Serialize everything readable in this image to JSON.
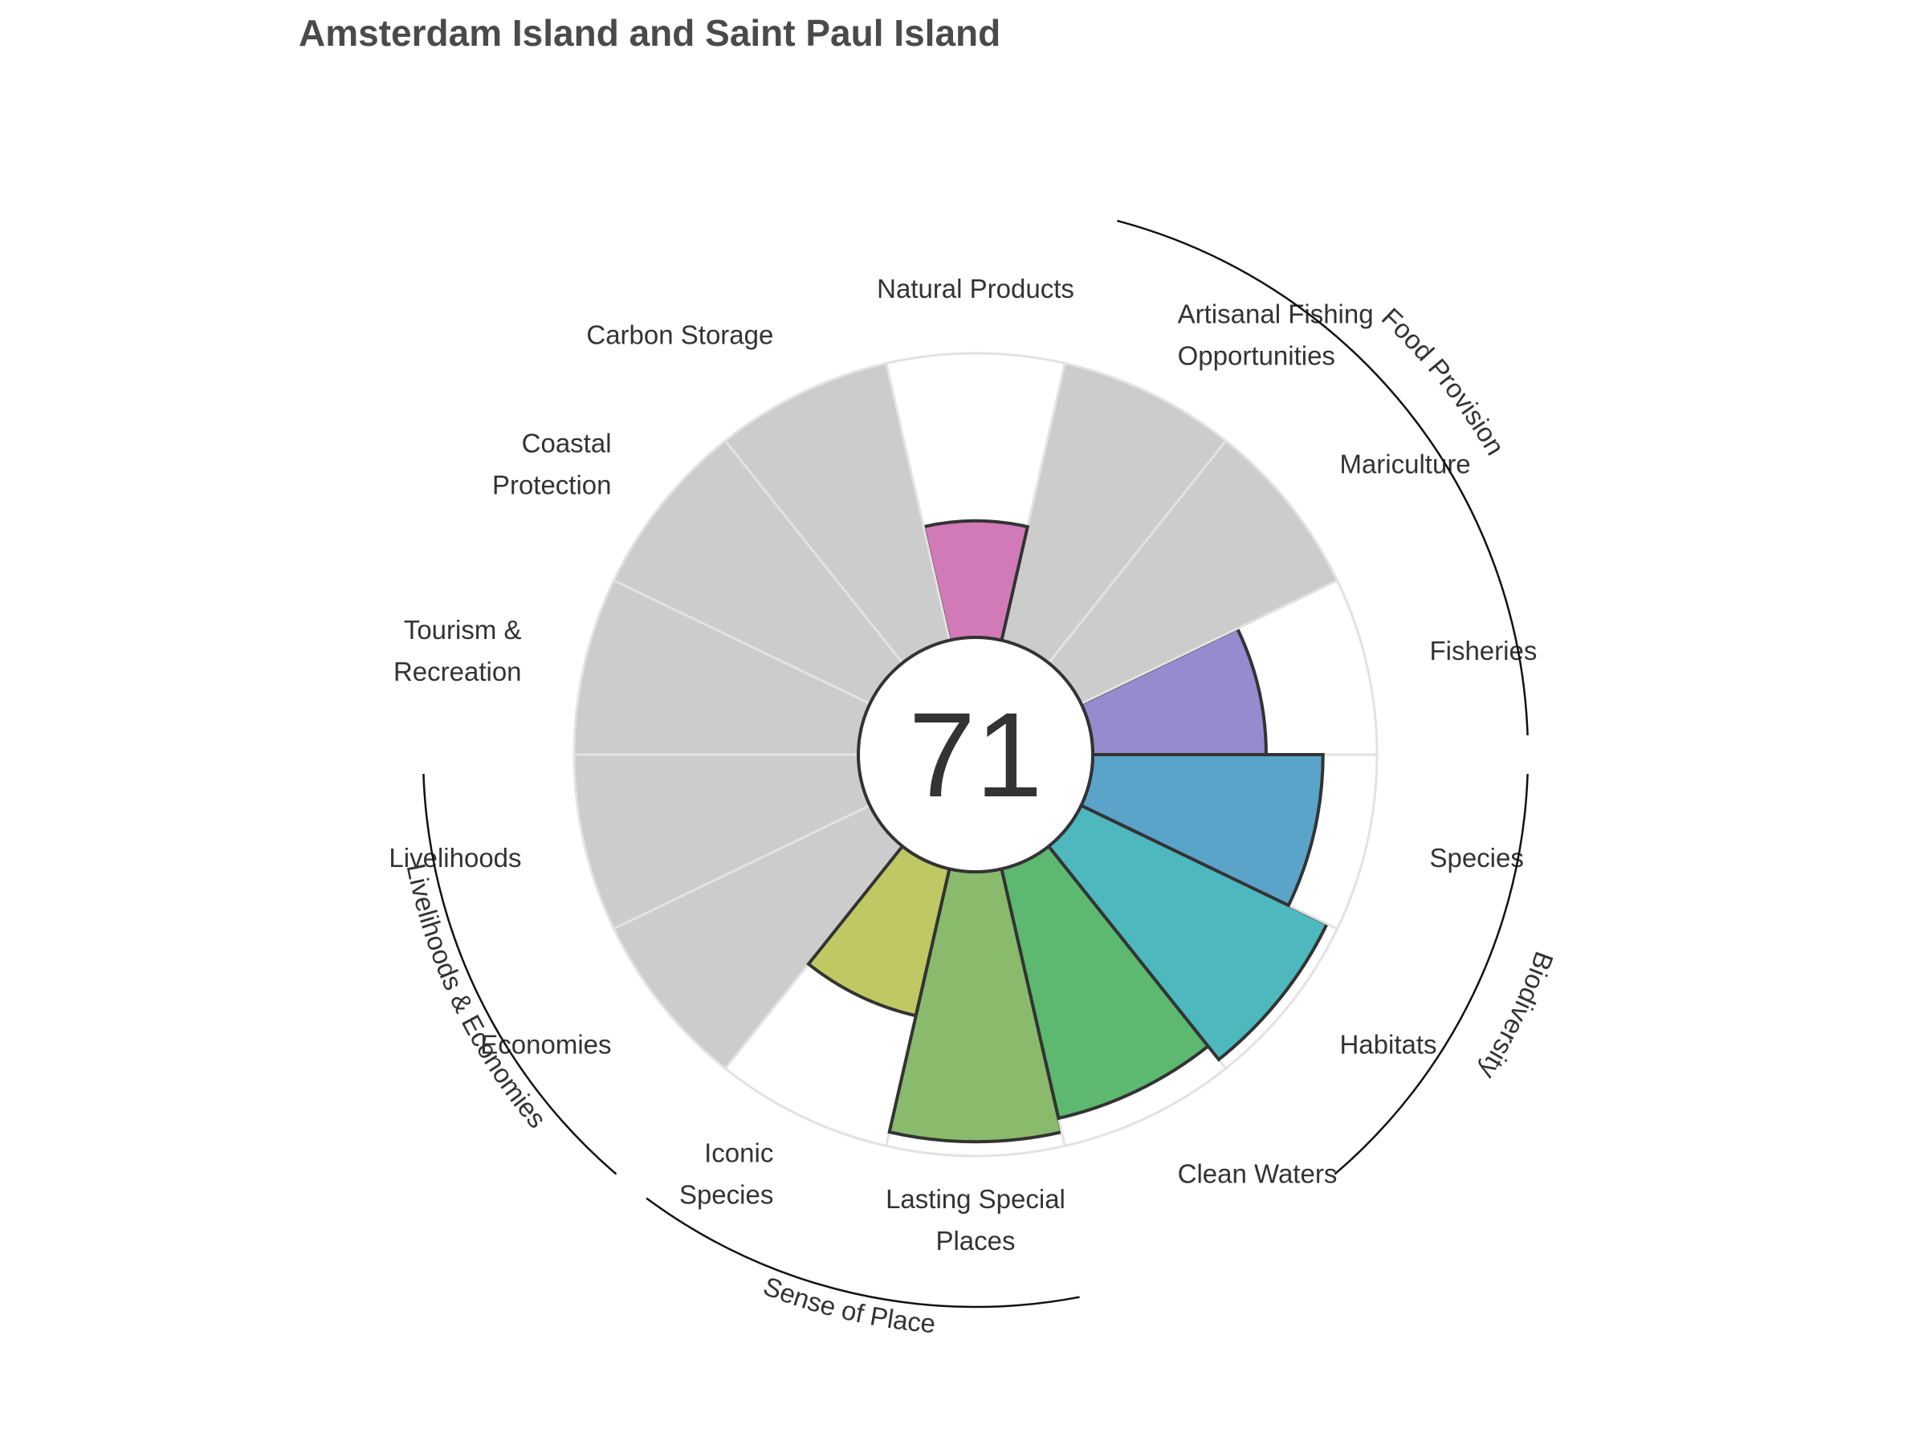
{
  "chart_data": {
    "type": "polar-bar",
    "title": "Amsterdam Island and Saint Paul Island",
    "overall_score": "71",
    "rlim": [
      0,
      100
    ],
    "background_color": "#cccccc",
    "goals": [
      {
        "label": [
          "Fisheries"
        ],
        "value": 61,
        "color": "#958bcf",
        "missing": false
      },
      {
        "label": [
          "Mariculture"
        ],
        "value": null,
        "color": "#cccccc",
        "missing": true
      },
      {
        "label": [
          "Artisanal Fishing",
          "Opportunities"
        ],
        "value": null,
        "color": "#cccccc",
        "missing": true
      },
      {
        "label": [
          "Natural Products"
        ],
        "value": 41,
        "color": "#d27ab8",
        "missing": false
      },
      {
        "label": [
          "Carbon Storage"
        ],
        "value": null,
        "color": "#cccccc",
        "missing": true
      },
      {
        "label": [
          "Coastal",
          "Protection"
        ],
        "value": null,
        "color": "#cccccc",
        "missing": true
      },
      {
        "label": [
          "Tourism &",
          "Recreation"
        ],
        "value": null,
        "color": "#cccccc",
        "missing": true
      },
      {
        "label": [
          "Livelihoods"
        ],
        "value": null,
        "color": "#cccccc",
        "missing": true
      },
      {
        "label": [
          "Economies"
        ],
        "value": null,
        "color": "#cccccc",
        "missing": true
      },
      {
        "label": [
          "Iconic",
          "Species"
        ],
        "value": 53,
        "color": "#bfc863",
        "missing": false
      },
      {
        "label": [
          "Lasting Special",
          "Places"
        ],
        "value": 95,
        "color": "#8aba6c",
        "missing": false
      },
      {
        "label": [
          "Clean Waters"
        ],
        "value": 90,
        "color": "#5db870",
        "missing": false
      },
      {
        "label": [
          "Habitats"
        ],
        "value": 96,
        "color": "#4db8bd",
        "missing": false
      },
      {
        "label": [
          "Species"
        ],
        "value": 81,
        "color": "#5aa3c9",
        "missing": false
      }
    ],
    "groups": [
      {
        "name": "Food Provision",
        "start": 0,
        "end": 3
      },
      {
        "name": "Biodiversity",
        "start": 12,
        "end": 14
      },
      {
        "name": "Sense of Place",
        "start": 9,
        "end": 11
      },
      {
        "name": "Livelihoods & Economies",
        "start": 7,
        "end": 9
      }
    ]
  }
}
